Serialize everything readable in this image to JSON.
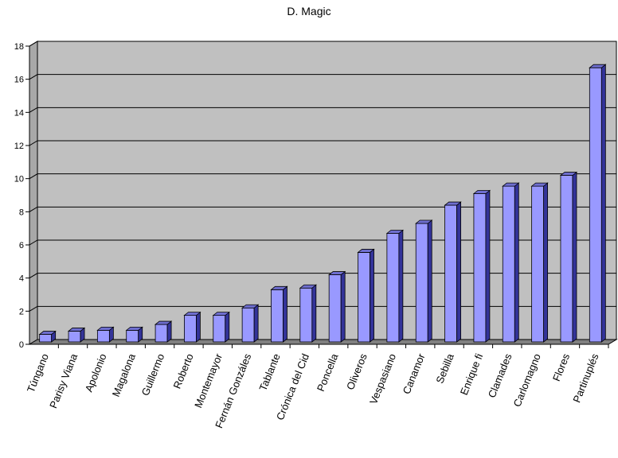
{
  "chart_data": {
    "type": "bar",
    "title": "D. Magic",
    "xlabel": "",
    "ylabel": "",
    "ylim": [
      0,
      18
    ],
    "yticks": [
      0,
      2,
      4,
      6,
      8,
      10,
      12,
      14,
      16,
      18
    ],
    "grid": true,
    "legend": "none",
    "categories": [
      "Túngano",
      "Parisy Viana",
      "Apolonio",
      "Magalona",
      "Guillermo",
      "Roberto",
      "Montemayor",
      "Fernán Gonzáles",
      "Tablante",
      "Crónica del Cid",
      "Poncella",
      "Oliveros",
      "Vespasiano",
      "Canamor",
      "Sebilla",
      "Enrique fi",
      "Clamades",
      "Carlomagno",
      "Flores",
      "Partinuplés"
    ],
    "values": [
      0.5,
      0.7,
      0.75,
      0.75,
      1.1,
      1.65,
      1.65,
      2.1,
      3.2,
      3.3,
      4.1,
      5.45,
      6.6,
      7.2,
      8.3,
      9.0,
      9.45,
      9.45,
      10.1,
      16.6
    ],
    "colors": {
      "bar_front": "#9999ff",
      "bar_side": "#333399",
      "bar_top": "#6e6ecf",
      "wall": "#c0c0c0",
      "floor": "#808080",
      "grid": "#000000"
    }
  }
}
